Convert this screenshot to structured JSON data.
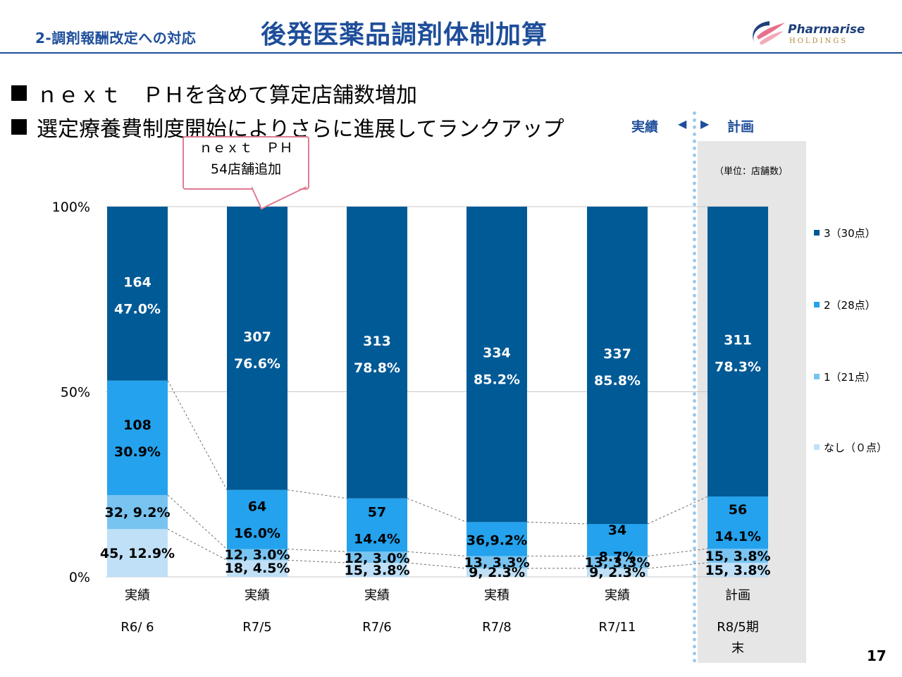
{
  "header": {
    "section_label": "2-調剤報酬改定への対応",
    "title": "後発医薬品調剤体制加算",
    "logo_name": "Pharmarise",
    "logo_sub": "HOLDINGS"
  },
  "bullets": [
    "ｎｅｘｔ　ＰＨを含めて算定店舗数増加",
    "選定療養費制度開始によりさらに進展してランクアップ"
  ],
  "period_labels": {
    "actual": "実績",
    "plan": "計画"
  },
  "unit_note": "（単位：店舗数）",
  "callout": {
    "line1": "ｎｅｘｔ　ＰＨ",
    "line2": "54店舗追加"
  },
  "page_number": "17",
  "colors": {
    "rank3": "#005a96",
    "rank2": "#24a2ed",
    "rank1": "#78c3f0",
    "none": "#bfe0f7",
    "plan_bg": "#e6e6e6",
    "divider": "#9ec9ea",
    "callout_border": "#e07b92"
  },
  "chart_data": {
    "type": "bar",
    "stacked": true,
    "percent": true,
    "ytick_labels": [
      "0%",
      "50%",
      "100%"
    ],
    "ylim": [
      0,
      100
    ],
    "categories": [
      "実績\nR6/ 6",
      "実績\nR7/5",
      "実績\nR7/6",
      "実積\nR7/8",
      "実績\nR7/11",
      "計画\nR8/5期末"
    ],
    "category_top": [
      "実績",
      "実績",
      "実績",
      "実積",
      "実績",
      "計画"
    ],
    "category_bottom": [
      "R6/ 6",
      "R7/5",
      "R7/6",
      "R7/8",
      "R7/11",
      "R8/5期\n末"
    ],
    "series": [
      {
        "name": "なし（０点）",
        "color": "#bfe0f7",
        "values": [
          12.9,
          4.5,
          3.8,
          2.3,
          2.3,
          3.8
        ],
        "counts": [
          45,
          18,
          15,
          9,
          9,
          15
        ],
        "labels": [
          "45, 12.9%",
          "18, 4.5%",
          "15, 3.8%",
          "9, 2.3%",
          "9, 2.3%",
          "15, 3.8%"
        ]
      },
      {
        "name": "1（21点）",
        "color": "#78c3f0",
        "values": [
          9.2,
          3.0,
          3.0,
          3.3,
          3.3,
          3.8
        ],
        "counts": [
          32,
          12,
          12,
          13,
          13,
          15
        ],
        "labels": [
          "32, 9.2%",
          "12, 3.0%",
          "12, 3.0%",
          "13, 3.3%",
          "13, 3.3%",
          "15, 3.8%"
        ]
      },
      {
        "name": "2（28点）",
        "color": "#24a2ed",
        "values": [
          30.9,
          16.0,
          14.4,
          9.2,
          8.7,
          14.1
        ],
        "counts": [
          108,
          64,
          57,
          36,
          34,
          56
        ],
        "labels": [
          [
            "108",
            "30.9%"
          ],
          [
            "64",
            "16.0%"
          ],
          [
            "57",
            "14.4%"
          ],
          [
            "36,9.2%"
          ],
          [
            "34",
            "8.7%"
          ],
          [
            "56",
            "14.1%"
          ]
        ]
      },
      {
        "name": "3（30点）",
        "color": "#005a96",
        "values": [
          47.0,
          76.6,
          78.8,
          85.2,
          85.8,
          78.3
        ],
        "counts": [
          164,
          307,
          313,
          334,
          337,
          311
        ],
        "labels": [
          [
            "164",
            "47.0%"
          ],
          [
            "307",
            "76.6%"
          ],
          [
            "313",
            "78.8%"
          ],
          [
            "334",
            "85.2%"
          ],
          [
            "337",
            "85.8%"
          ],
          [
            "311",
            "78.3%"
          ]
        ]
      }
    ],
    "legend_order": [
      "3（30点）",
      "2（28点）",
      "1（21点）",
      "なし（０点）"
    ],
    "legend_position": "right",
    "grid": true
  }
}
